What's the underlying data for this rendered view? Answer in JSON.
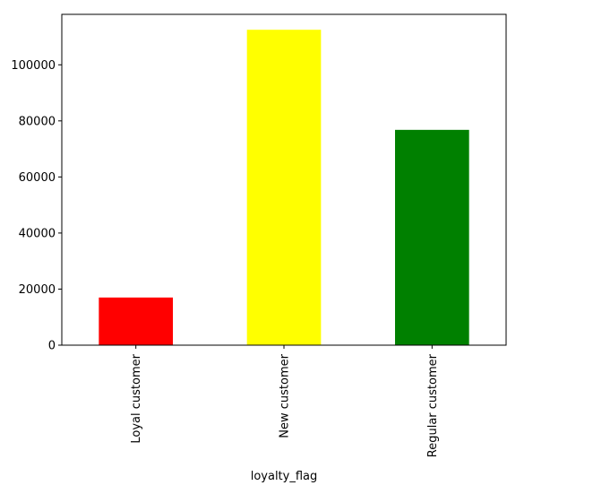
{
  "chart_data": {
    "type": "bar",
    "title": "",
    "xlabel": "loyalty_flag",
    "ylabel": "",
    "categories": [
      "Loyal customer",
      "New customer",
      "Regular customer"
    ],
    "values": [
      17000,
      112500,
      76800
    ],
    "colors": [
      "#ff0000",
      "#ffff00",
      "#008000"
    ],
    "ylim": [
      0,
      118000
    ],
    "yticks": [
      0,
      20000,
      40000,
      60000,
      80000,
      100000
    ],
    "ytick_labels": [
      "0",
      "20000",
      "40000",
      "60000",
      "80000",
      "100000"
    ],
    "grid": false,
    "legend": "none",
    "xtick_rotation": "vertical"
  }
}
